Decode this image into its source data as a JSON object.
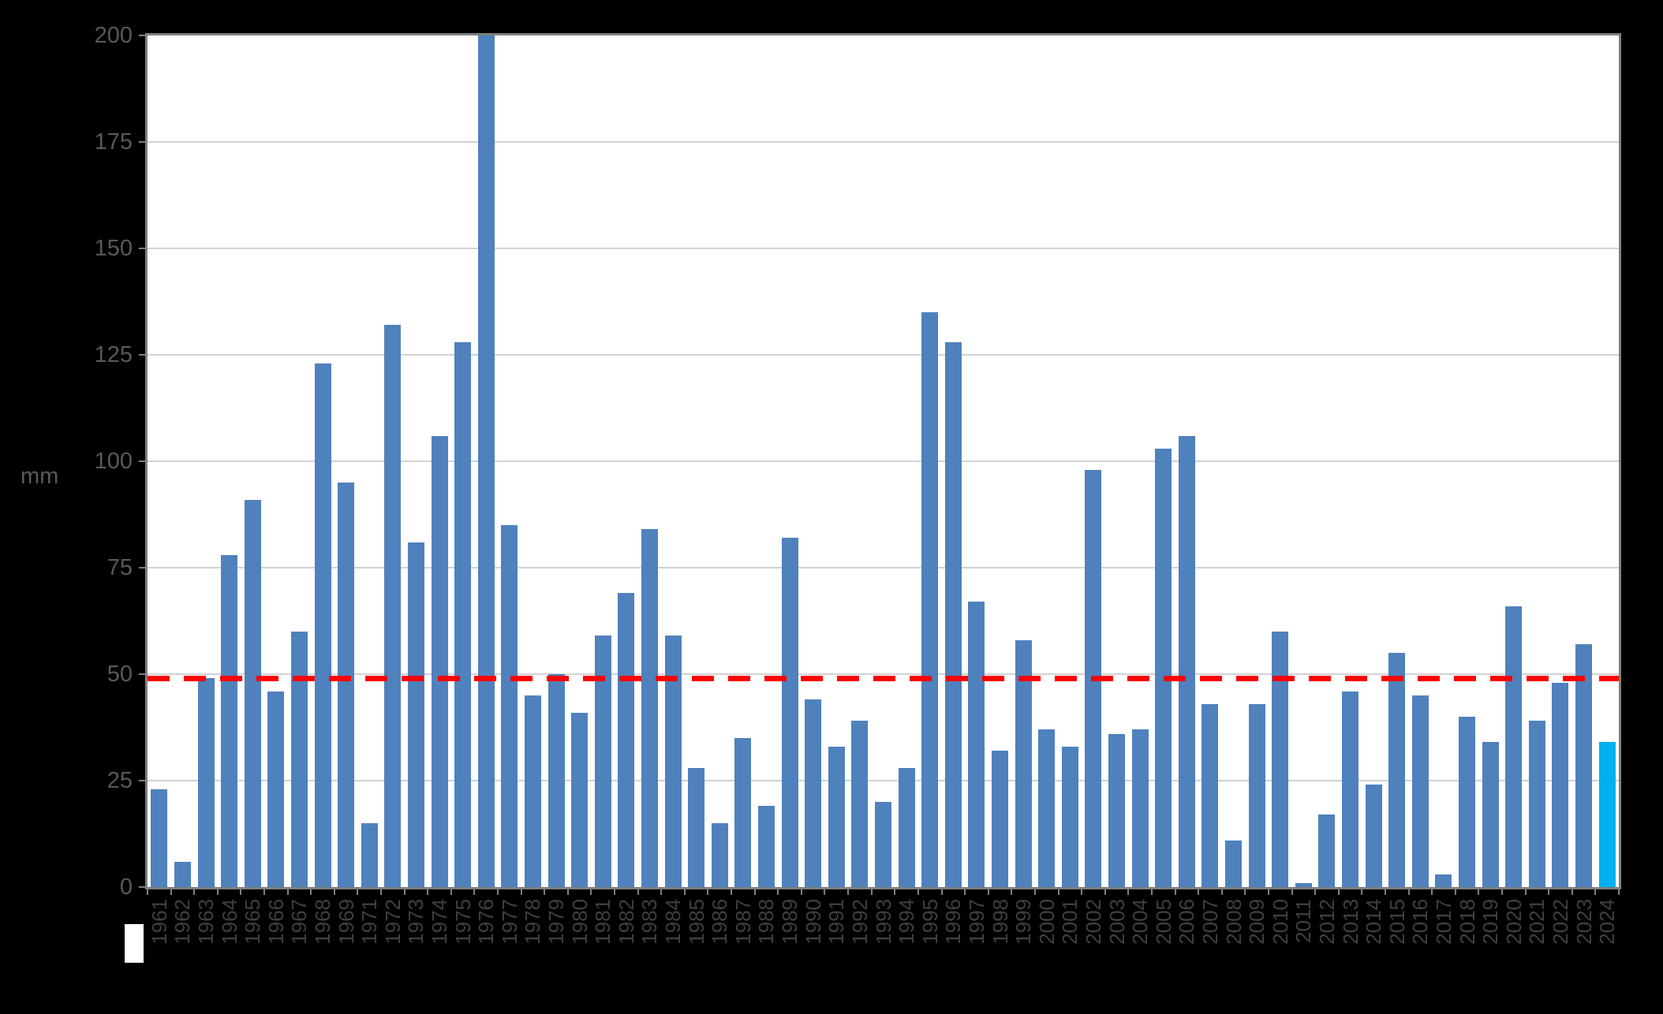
{
  "y_axis_title": "mm",
  "chart_data": {
    "type": "bar",
    "title": "",
    "xlabel": "",
    "ylabel": "mm",
    "ylim": [
      0,
      200
    ],
    "yticks": [
      0,
      25,
      50,
      75,
      100,
      125,
      150,
      175,
      200
    ],
    "grid": true,
    "legend_position": "bottom-left",
    "categories": [
      "1961",
      "1962",
      "1963",
      "1964",
      "1965",
      "1966",
      "1967",
      "1968",
      "1969",
      "1971",
      "1972",
      "1973",
      "1974",
      "1975",
      "1976",
      "1977",
      "1978",
      "1979",
      "1980",
      "1981",
      "1982",
      "1983",
      "1984",
      "1985",
      "1986",
      "1987",
      "1988",
      "1989",
      "1990",
      "1991",
      "1992",
      "1993",
      "1994",
      "1995",
      "1996",
      "1997",
      "1998",
      "1999",
      "2000",
      "2001",
      "2002",
      "2003",
      "2004",
      "2005",
      "2006",
      "2007",
      "2008",
      "2009",
      "2010",
      "2011",
      "2012",
      "2013",
      "2014",
      "2015",
      "2016",
      "2017",
      "2018",
      "2019",
      "2020",
      "2021",
      "2022",
      "2023",
      "2024"
    ],
    "values": [
      23,
      6,
      49,
      78,
      91,
      46,
      60,
      123,
      95,
      15,
      132,
      81,
      106,
      128,
      200,
      85,
      45,
      50,
      41,
      59,
      69,
      84,
      59,
      28,
      15,
      35,
      19,
      82,
      44,
      33,
      39,
      20,
      28,
      135,
      128,
      67,
      32,
      58,
      37,
      33,
      98,
      36,
      37,
      103,
      106,
      43,
      11,
      43,
      60,
      1,
      17,
      46,
      24,
      55,
      45,
      3,
      40,
      34,
      66,
      39,
      48,
      57,
      34
    ],
    "notes": "Year 1970 absent from axis; 1976 bar reaches top of axis (value >= 200, clipped)",
    "bar_color": "#4f81bd",
    "highlight_category": "2024",
    "highlight_color": "#00b0f0",
    "reference_line": {
      "value": 49,
      "color": "#ff0000",
      "style": "dashed"
    }
  }
}
